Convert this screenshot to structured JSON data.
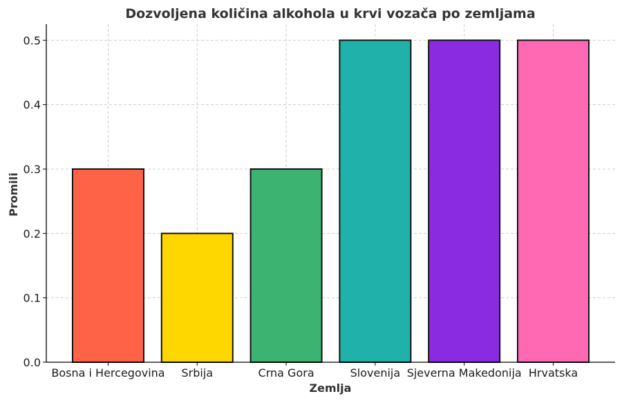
{
  "chart_data": {
    "type": "bar",
    "title": "Dozvoljena količina alkohola u krvi vozača po zemljama",
    "xlabel": "Zemlja",
    "ylabel": "Promili",
    "categories": [
      "Bosna i Hercegovina",
      "Srbija",
      "Crna Gora",
      "Slovenija",
      "Sjeverna Makedonija",
      "Hrvatska"
    ],
    "values": [
      0.3,
      0.2,
      0.3,
      0.5,
      0.5,
      0.5
    ],
    "colors": [
      "#FF6347",
      "#FFD700",
      "#3CB371",
      "#20B2AA",
      "#8A2BE2",
      "#FF69B4"
    ],
    "ylim": [
      0,
      0.525
    ],
    "yticks": [
      0.0,
      0.1,
      0.2,
      0.3,
      0.4,
      0.5
    ],
    "ytick_labels": [
      "0.0",
      "0.1",
      "0.2",
      "0.3",
      "0.4",
      "0.5"
    ],
    "grid": true,
    "legend": "none"
  }
}
